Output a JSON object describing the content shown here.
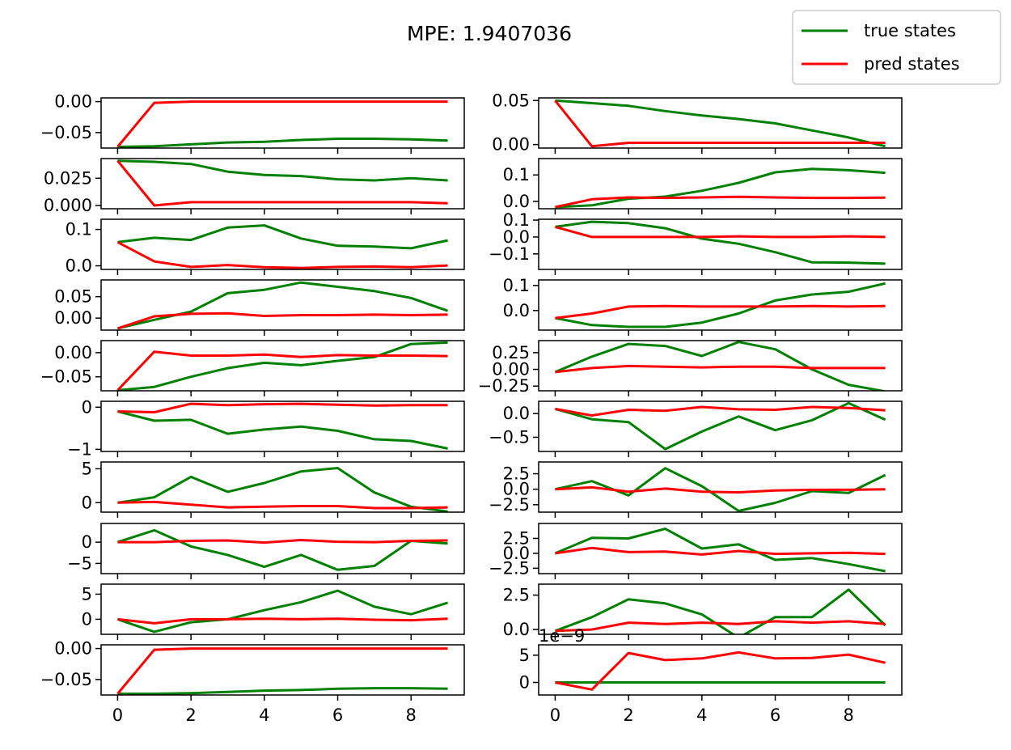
{
  "figure": {
    "title": "MPE: 1.9407036"
  },
  "legend": {
    "placement": "top-right",
    "entries": [
      {
        "label": "true states",
        "color": "#008000"
      },
      {
        "label": "pred states",
        "color": "#ff0000"
      }
    ]
  },
  "colors": {
    "true": "#008000",
    "pred": "#ff0000",
    "frame": "#000000"
  },
  "chart_data": [
    {
      "type": "line",
      "ylim": [
        -0.075,
        0.006
      ],
      "yticks": [
        0.0,
        -0.05
      ],
      "yticklabels": [
        "0.00",
        "−0.05"
      ],
      "x": [
        0,
        1,
        2,
        3,
        4,
        5,
        6,
        7,
        8,
        9
      ],
      "series": [
        {
          "name": "true states",
          "values": [
            -0.073,
            -0.072,
            -0.069,
            -0.066,
            -0.065,
            -0.062,
            -0.06,
            -0.06,
            -0.061,
            -0.063
          ]
        },
        {
          "name": "pred states",
          "values": [
            -0.073,
            -0.002,
            0.0,
            0.0,
            0.0,
            0.0,
            0.0,
            0.0,
            0.0,
            0.0
          ]
        }
      ]
    },
    {
      "type": "line",
      "ylim": [
        -0.004,
        0.053
      ],
      "yticks": [
        0.05,
        0.0
      ],
      "yticklabels": [
        "0.05",
        "0.00"
      ],
      "x": [
        0,
        1,
        2,
        3,
        4,
        5,
        6,
        7,
        8,
        9
      ],
      "series": [
        {
          "name": "true states",
          "values": [
            0.05,
            0.047,
            0.044,
            0.038,
            0.033,
            0.029,
            0.024,
            0.016,
            0.008,
            -0.002
          ]
        },
        {
          "name": "pred states",
          "values": [
            0.05,
            -0.002,
            0.002,
            0.002,
            0.002,
            0.002,
            0.002,
            0.002,
            0.002,
            0.002
          ]
        }
      ]
    },
    {
      "type": "line",
      "ylim": [
        -0.003,
        0.043
      ],
      "yticks": [
        0.025,
        0.0
      ],
      "yticklabels": [
        "0.025",
        "0.000"
      ],
      "x": [
        0,
        1,
        2,
        3,
        4,
        5,
        6,
        7,
        8,
        9
      ],
      "series": [
        {
          "name": "true states",
          "values": [
            0.041,
            0.04,
            0.038,
            0.031,
            0.028,
            0.027,
            0.024,
            0.023,
            0.025,
            0.023
          ]
        },
        {
          "name": "pred states",
          "values": [
            0.041,
            0.0,
            0.003,
            0.003,
            0.003,
            0.003,
            0.003,
            0.003,
            0.003,
            0.002
          ]
        }
      ]
    },
    {
      "type": "line",
      "ylim": [
        -0.028,
        0.162
      ],
      "yticks": [
        0.1,
        0.0
      ],
      "yticklabels": [
        "0.1",
        "0.0"
      ],
      "x": [
        0,
        1,
        2,
        3,
        4,
        5,
        6,
        7,
        8,
        9
      ],
      "series": [
        {
          "name": "true states",
          "values": [
            -0.022,
            -0.015,
            0.01,
            0.018,
            0.04,
            0.07,
            0.11,
            0.123,
            0.118,
            0.108
          ]
        },
        {
          "name": "pred states",
          "values": [
            -0.022,
            0.008,
            0.015,
            0.013,
            0.015,
            0.017,
            0.015,
            0.013,
            0.013,
            0.014
          ]
        }
      ]
    },
    {
      "type": "line",
      "ylim": [
        -0.01,
        0.128
      ],
      "yticks": [
        0.1,
        0.0
      ],
      "yticklabels": [
        "0.1",
        "0.0"
      ],
      "x": [
        0,
        1,
        2,
        3,
        4,
        5,
        6,
        7,
        8,
        9
      ],
      "series": [
        {
          "name": "true states",
          "values": [
            0.065,
            0.077,
            0.071,
            0.105,
            0.111,
            0.075,
            0.055,
            0.053,
            0.048,
            0.07
          ]
        },
        {
          "name": "pred states",
          "values": [
            0.065,
            0.012,
            -0.003,
            0.002,
            -0.004,
            -0.006,
            -0.003,
            -0.002,
            -0.004,
            0.001
          ]
        }
      ]
    },
    {
      "type": "line",
      "ylim": [
        -0.192,
        0.105
      ],
      "yticks": [
        0.1,
        0.0,
        -0.1
      ],
      "yticklabels": [
        "0.1",
        "0.0",
        "−0.1"
      ],
      "x": [
        0,
        1,
        2,
        3,
        4,
        5,
        6,
        7,
        8,
        9
      ],
      "series": [
        {
          "name": "true states",
          "values": [
            0.06,
            0.09,
            0.082,
            0.052,
            -0.01,
            -0.04,
            -0.09,
            -0.15,
            -0.152,
            -0.158
          ]
        },
        {
          "name": "pred states",
          "values": [
            0.06,
            0.0,
            0.0,
            0.0,
            0.0,
            0.004,
            0.0,
            0.0,
            0.004,
            0.0
          ]
        }
      ]
    },
    {
      "type": "line",
      "ylim": [
        -0.028,
        0.089
      ],
      "yticks": [
        0.05,
        0.0
      ],
      "yticklabels": [
        "0.05",
        "0.00"
      ],
      "x": [
        0,
        1,
        2,
        3,
        4,
        5,
        6,
        7,
        8,
        9
      ],
      "series": [
        {
          "name": "true states",
          "values": [
            -0.024,
            -0.004,
            0.015,
            0.058,
            0.066,
            0.083,
            0.073,
            0.063,
            0.047,
            0.017
          ]
        },
        {
          "name": "pred states",
          "values": [
            -0.024,
            0.004,
            0.01,
            0.011,
            0.005,
            0.007,
            0.007,
            0.008,
            0.007,
            0.008
          ]
        }
      ]
    },
    {
      "type": "line",
      "ylim": [
        -0.078,
        0.122
      ],
      "yticks": [
        0.1,
        0.0
      ],
      "yticklabels": [
        "0.1",
        "0.0"
      ],
      "x": [
        0,
        1,
        2,
        3,
        4,
        5,
        6,
        7,
        8,
        9
      ],
      "series": [
        {
          "name": "true states",
          "values": [
            -0.03,
            -0.058,
            -0.065,
            -0.065,
            -0.048,
            -0.012,
            0.04,
            0.064,
            0.075,
            0.108
          ]
        },
        {
          "name": "pred states",
          "values": [
            -0.03,
            -0.012,
            0.016,
            0.018,
            0.016,
            0.016,
            0.016,
            0.018,
            0.016,
            0.018
          ]
        }
      ]
    },
    {
      "type": "line",
      "ylim": [
        -0.079,
        0.025
      ],
      "yticks": [
        0.0,
        -0.05
      ],
      "yticklabels": [
        "0.00",
        "−0.05"
      ],
      "x": [
        0,
        1,
        2,
        3,
        4,
        5,
        6,
        7,
        8,
        9
      ],
      "series": [
        {
          "name": "true states",
          "values": [
            -0.078,
            -0.071,
            -0.05,
            -0.032,
            -0.021,
            -0.026,
            -0.017,
            -0.009,
            0.018,
            0.021
          ]
        },
        {
          "name": "pred states",
          "values": [
            -0.078,
            0.002,
            -0.006,
            -0.006,
            -0.004,
            -0.009,
            -0.005,
            -0.006,
            -0.006,
            -0.007
          ]
        }
      ]
    },
    {
      "type": "line",
      "ylim": [
        -0.32,
        0.43
      ],
      "yticks": [
        0.25,
        0.0,
        -0.25
      ],
      "yticklabels": [
        "0.25",
        "0.00",
        "−0.25"
      ],
      "x": [
        0,
        1,
        2,
        3,
        4,
        5,
        6,
        7,
        8,
        9
      ],
      "series": [
        {
          "name": "true states",
          "values": [
            -0.04,
            0.19,
            0.38,
            0.35,
            0.2,
            0.41,
            0.3,
            0.0,
            -0.23,
            -0.33
          ]
        },
        {
          "name": "pred states",
          "values": [
            -0.04,
            0.02,
            0.05,
            0.04,
            0.03,
            0.04,
            0.04,
            0.02,
            0.02,
            0.02
          ]
        }
      ]
    },
    {
      "type": "line",
      "ylim": [
        -1.05,
        0.14
      ],
      "yticks": [
        0,
        -1
      ],
      "yticklabels": [
        "0",
        "−1"
      ],
      "x": [
        0,
        1,
        2,
        3,
        4,
        5,
        6,
        7,
        8,
        9
      ],
      "series": [
        {
          "name": "true states",
          "values": [
            -0.1,
            -0.32,
            -0.3,
            -0.63,
            -0.53,
            -0.46,
            -0.56,
            -0.76,
            -0.8,
            -0.98
          ]
        },
        {
          "name": "pred states",
          "values": [
            -0.1,
            -0.12,
            0.08,
            0.05,
            0.07,
            0.08,
            0.06,
            0.04,
            0.05,
            0.05
          ]
        }
      ]
    },
    {
      "type": "line",
      "ylim": [
        -0.8,
        0.26
      ],
      "yticks": [
        0.0,
        -0.5
      ],
      "yticklabels": [
        "0.0",
        "−0.5"
      ],
      "x": [
        0,
        1,
        2,
        3,
        4,
        5,
        6,
        7,
        8,
        9
      ],
      "series": [
        {
          "name": "true states",
          "values": [
            0.1,
            -0.12,
            -0.18,
            -0.75,
            -0.38,
            -0.06,
            -0.35,
            -0.14,
            0.22,
            -0.13
          ]
        },
        {
          "name": "pred states",
          "values": [
            0.1,
            -0.04,
            0.08,
            0.06,
            0.14,
            0.09,
            0.08,
            0.14,
            0.12,
            0.07
          ]
        }
      ]
    },
    {
      "type": "line",
      "ylim": [
        -1.4,
        6.0
      ],
      "yticks": [
        5,
        0
      ],
      "yticklabels": [
        "5",
        "0"
      ],
      "x": [
        0,
        1,
        2,
        3,
        4,
        5,
        6,
        7,
        8,
        9
      ],
      "series": [
        {
          "name": "true states",
          "values": [
            0.0,
            0.8,
            3.8,
            1.6,
            2.9,
            4.6,
            5.1,
            1.5,
            -0.6,
            -1.3
          ]
        },
        {
          "name": "pred states",
          "values": [
            0.0,
            0.1,
            -0.3,
            -0.7,
            -0.6,
            -0.5,
            -0.5,
            -0.8,
            -0.8,
            -0.7
          ]
        }
      ]
    },
    {
      "type": "line",
      "ylim": [
        -3.7,
        4.4
      ],
      "yticks": [
        2.5,
        0.0,
        -2.5
      ],
      "yticklabels": [
        "2.5",
        "0.0",
        "−2.5"
      ],
      "x": [
        0,
        1,
        2,
        3,
        4,
        5,
        6,
        7,
        8,
        9
      ],
      "series": [
        {
          "name": "true states",
          "values": [
            0.0,
            1.3,
            -1.0,
            3.4,
            0.5,
            -3.5,
            -2.2,
            -0.3,
            -0.6,
            2.3
          ]
        },
        {
          "name": "pred states",
          "values": [
            0.0,
            0.3,
            -0.4,
            0.1,
            -0.4,
            -0.5,
            -0.2,
            -0.1,
            -0.1,
            0.0
          ]
        }
      ]
    },
    {
      "type": "line",
      "ylim": [
        -7.4,
        4.4
      ],
      "yticks": [
        0,
        -5
      ],
      "yticklabels": [
        "0",
        "−5"
      ],
      "x": [
        0,
        1,
        2,
        3,
        4,
        5,
        6,
        7,
        8,
        9
      ],
      "series": [
        {
          "name": "true states",
          "values": [
            0.0,
            2.8,
            -1.0,
            -3.0,
            -5.8,
            -3.0,
            -6.5,
            -5.6,
            0.3,
            -0.3
          ]
        },
        {
          "name": "pred states",
          "values": [
            0.0,
            0.0,
            0.3,
            0.4,
            -0.1,
            0.5,
            0.1,
            0.0,
            0.3,
            0.4
          ]
        }
      ]
    },
    {
      "type": "line",
      "ylim": [
        -3.4,
        5.0
      ],
      "yticks": [
        2.5,
        0.0,
        -2.5
      ],
      "yticklabels": [
        "2.5",
        "0.0",
        "−2.5"
      ],
      "x": [
        0,
        1,
        2,
        3,
        4,
        5,
        6,
        7,
        8,
        9
      ],
      "series": [
        {
          "name": "true states",
          "values": [
            0.0,
            2.6,
            2.5,
            4.1,
            0.8,
            1.5,
            -1.1,
            -0.8,
            -1.8,
            -3.0
          ]
        },
        {
          "name": "pred states",
          "values": [
            0.0,
            0.9,
            0.2,
            0.3,
            -0.2,
            0.4,
            -0.1,
            0.0,
            0.1,
            -0.1
          ]
        }
      ]
    },
    {
      "type": "line",
      "ylim": [
        -3.0,
        7.0
      ],
      "yticks": [
        5,
        0
      ],
      "yticklabels": [
        "5",
        "0"
      ],
      "x": [
        0,
        1,
        2,
        3,
        4,
        5,
        6,
        7,
        8,
        9
      ],
      "series": [
        {
          "name": "true states",
          "values": [
            0.0,
            -2.5,
            -0.6,
            0.0,
            1.8,
            3.4,
            5.7,
            2.5,
            1.0,
            3.3
          ]
        },
        {
          "name": "pred states",
          "values": [
            0.0,
            -0.8,
            0.0,
            0.0,
            0.1,
            0.0,
            0.1,
            -0.1,
            -0.2,
            0.1
          ]
        }
      ]
    },
    {
      "type": "line",
      "ylim": [
        -0.35,
        3.3
      ],
      "yticks": [
        2.5,
        0.0
      ],
      "yticklabels": [
        "2.5",
        "0.0"
      ],
      "x": [
        0,
        1,
        2,
        3,
        4,
        5,
        6,
        7,
        8,
        9
      ],
      "series": [
        {
          "name": "true states",
          "values": [
            -0.1,
            0.9,
            2.2,
            1.9,
            1.1,
            -0.6,
            0.9,
            0.9,
            2.9,
            0.3
          ]
        },
        {
          "name": "pred states",
          "values": [
            -0.1,
            0.0,
            0.5,
            0.4,
            0.5,
            0.4,
            0.6,
            0.5,
            0.6,
            0.4
          ]
        }
      ]
    },
    {
      "type": "line",
      "ylim": [
        -0.075,
        0.006
      ],
      "yticks": [
        0.0,
        -0.05
      ],
      "yticklabels": [
        "0.00",
        "−0.05"
      ],
      "x": [
        0,
        1,
        2,
        3,
        4,
        5,
        6,
        7,
        8,
        9
      ],
      "series": [
        {
          "name": "true states",
          "values": [
            -0.073,
            -0.073,
            -0.072,
            -0.07,
            -0.068,
            -0.067,
            -0.065,
            -0.064,
            -0.064,
            -0.065
          ]
        },
        {
          "name": "pred states",
          "values": [
            -0.073,
            -0.002,
            0.0,
            0.0,
            0.0,
            0.0,
            0.0,
            0.0,
            0.0,
            0.0
          ]
        }
      ]
    },
    {
      "type": "line",
      "ylim": [
        -2.3,
        6.9
      ],
      "yticks": [
        5,
        0
      ],
      "yticklabels": [
        "5",
        "0"
      ],
      "offset_text": "1e−9",
      "x": [
        0,
        1,
        2,
        3,
        4,
        5,
        6,
        7,
        8,
        9
      ],
      "series": [
        {
          "name": "true states",
          "values": [
            0,
            0,
            0,
            0,
            0,
            0,
            0,
            0,
            0,
            0
          ]
        },
        {
          "name": "pred states",
          "values": [
            0.0,
            -1.3,
            5.4,
            4.1,
            4.4,
            5.5,
            4.4,
            4.5,
            5.1,
            3.6
          ]
        }
      ]
    }
  ],
  "xaxis": {
    "ticks": [
      0,
      2,
      4,
      6,
      8
    ],
    "tick_labels": [
      "0",
      "2",
      "4",
      "6",
      "8"
    ],
    "xlim": [
      -0.45,
      9.45
    ]
  }
}
